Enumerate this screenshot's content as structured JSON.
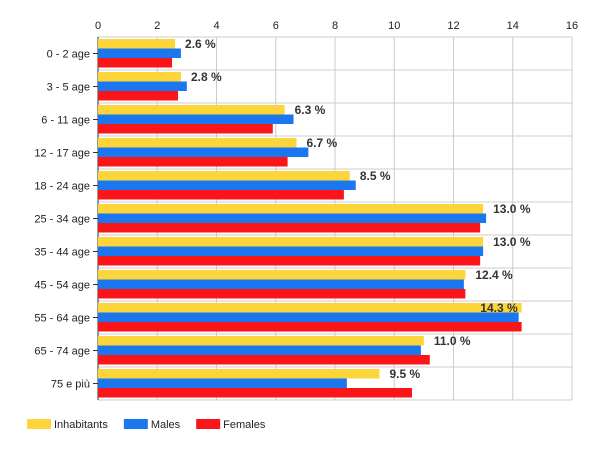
{
  "chart_data": {
    "type": "bar",
    "orientation": "horizontal",
    "categories": [
      "0 - 2 age",
      "3 - 5 age",
      "6 - 11 age",
      "12 - 17 age",
      "18 - 24 age",
      "25 - 34 age",
      "35 - 44 age",
      "45 - 54 age",
      "55 - 64 age",
      "65 - 74 age",
      "75 e più"
    ],
    "series": [
      {
        "name": "Inhabitants",
        "color": "#fcd53a",
        "values": [
          2.6,
          2.8,
          6.3,
          6.7,
          8.5,
          13.0,
          13.0,
          12.4,
          14.3,
          11.0,
          9.5
        ]
      },
      {
        "name": "Males",
        "color": "#1a77f0",
        "values": [
          2.8,
          3.0,
          6.6,
          7.1,
          8.7,
          13.1,
          13.0,
          12.35,
          14.2,
          10.9,
          8.4
        ]
      },
      {
        "name": "Females",
        "color": "#fb1518",
        "values": [
          2.5,
          2.7,
          5.9,
          6.4,
          8.3,
          12.9,
          12.9,
          12.4,
          14.3,
          11.2,
          10.6
        ]
      }
    ],
    "data_labels": [
      "2.6 %",
      "2.8 %",
      "6.3 %",
      "6.7 %",
      "8.5 %",
      "13.0 %",
      "13.0 %",
      "12.4 %",
      "14.3 %",
      "11.0 %",
      "9.5 %"
    ],
    "xlim": [
      0,
      16
    ],
    "xticks": [
      "0",
      "2",
      "4",
      "6",
      "8",
      "10",
      "12",
      "14",
      "16"
    ],
    "xaxis_position": "top",
    "grid": true,
    "legend_position": "bottom-left"
  }
}
